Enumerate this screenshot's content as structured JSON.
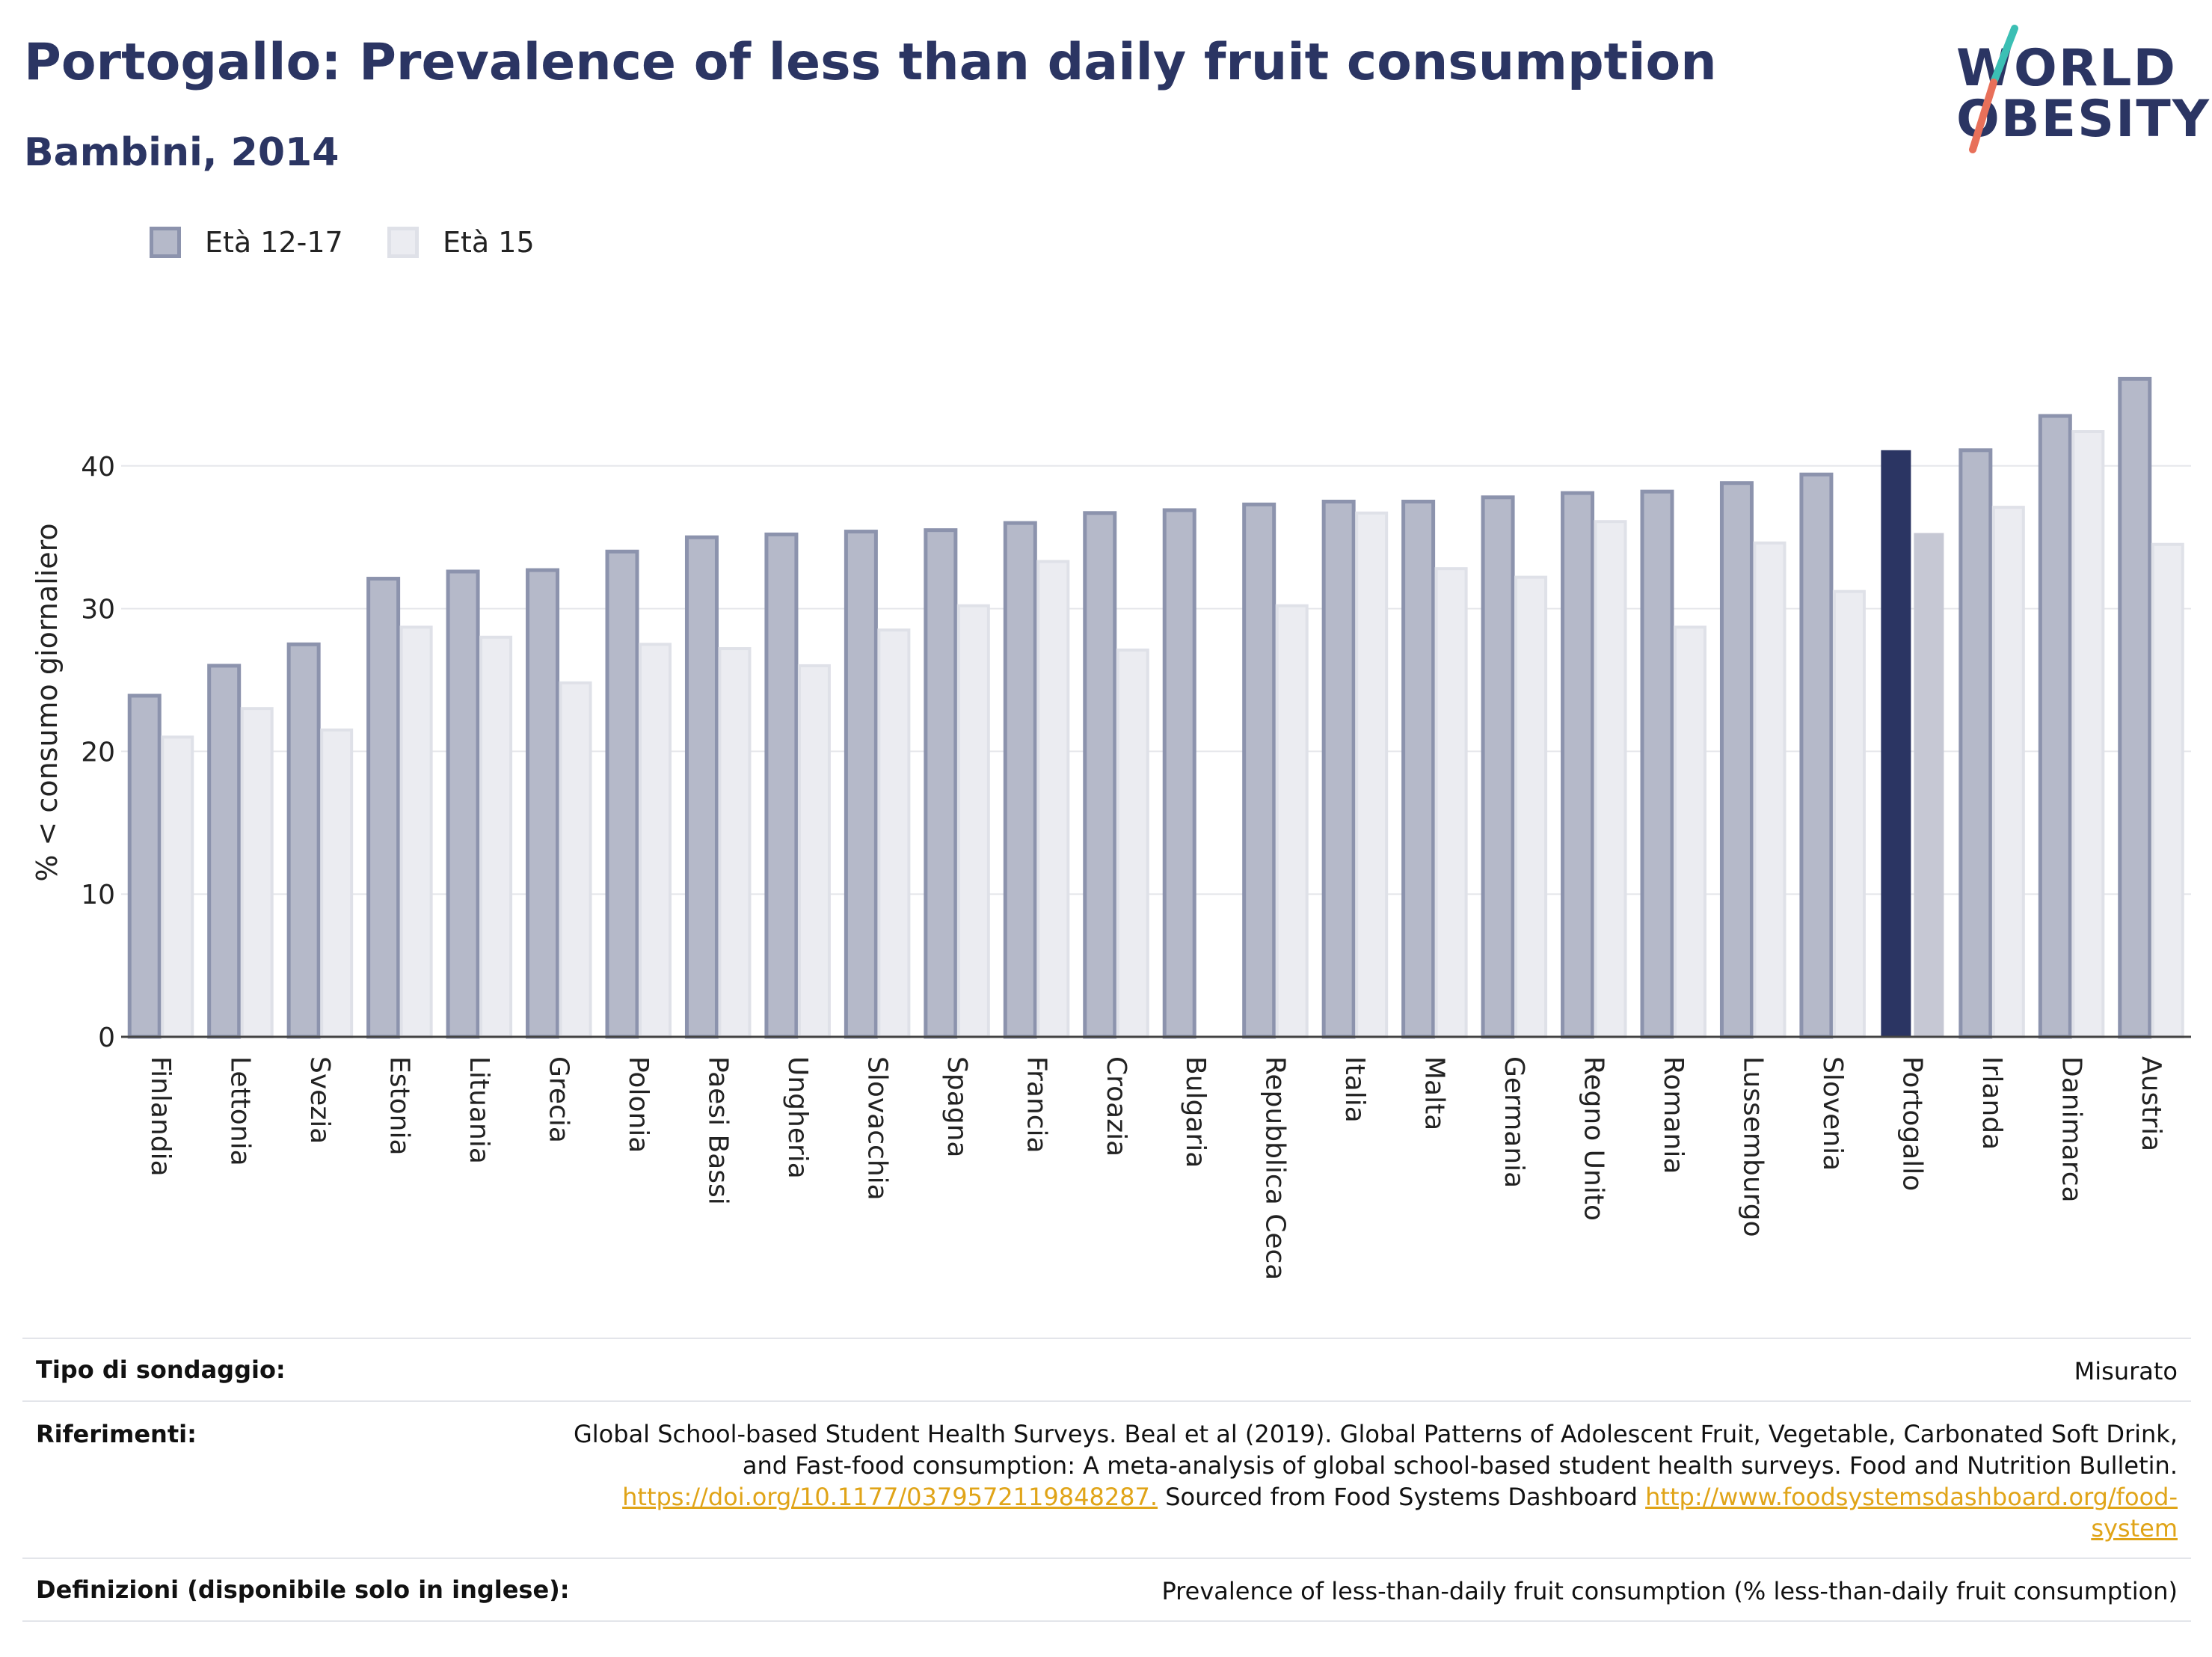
{
  "header": {
    "title": "Portogallo: Prevalence of less than daily fruit consumption",
    "subtitle": "Bambini, 2014"
  },
  "logo": {
    "line1": "WORLD",
    "line2": "OBESITY",
    "colors": {
      "text": "#2b3563",
      "slash_top": "#3bbfb4",
      "slash_bottom": "#e8705a"
    }
  },
  "legend": [
    {
      "label": "Età 12-17",
      "color": "#b5b9c9",
      "stroke": "#8c93ad"
    },
    {
      "label": "Età 15",
      "color": "#ebecf1",
      "stroke": "#dfe1e8"
    }
  ],
  "chart_data": {
    "type": "bar",
    "ylabel": "% < consumo giornaliero",
    "ylim": [
      0,
      50
    ],
    "yticks": [
      0,
      10,
      20,
      30,
      40
    ],
    "grid": true,
    "legend_position": "top-left",
    "highlight_category": "Portogallo",
    "highlight_colors": {
      "series1": "#2b3563",
      "series2": "#c6c8d4"
    },
    "categories": [
      "Finlandia",
      "Lettonia",
      "Svezia",
      "Estonia",
      "Lituania",
      "Grecia",
      "Polonia",
      "Paesi Bassi",
      "Ungheria",
      "Slovacchia",
      "Spagna",
      "Francia",
      "Croazia",
      "Bulgaria",
      "Repubblica Ceca",
      "Italia",
      "Malta",
      "Germania",
      "Regno Unito",
      "Romania",
      "Lussemburgo",
      "Slovenia",
      "Portogallo",
      "Irlanda",
      "Danimarca",
      "Austria"
    ],
    "series": [
      {
        "name": "Età 12-17",
        "values": [
          23.9,
          26.0,
          27.5,
          32.1,
          32.6,
          32.7,
          34.0,
          35.0,
          35.2,
          35.4,
          35.5,
          36.0,
          36.7,
          36.9,
          37.3,
          37.5,
          37.5,
          37.8,
          38.1,
          38.2,
          38.8,
          39.4,
          41.1,
          41.1,
          43.5,
          46.1
        ]
      },
      {
        "name": "Età 15",
        "values": [
          21.0,
          23.0,
          21.5,
          28.7,
          28.0,
          24.8,
          27.5,
          27.2,
          26.0,
          28.5,
          30.2,
          33.3,
          27.1,
          null,
          30.2,
          36.7,
          32.8,
          32.2,
          36.1,
          28.7,
          34.6,
          31.2,
          35.3,
          37.1,
          42.4,
          34.5
        ]
      }
    ]
  },
  "meta": {
    "survey_label": "Tipo di sondaggio:",
    "survey_value": "Misurato",
    "refs_label": "Riferimenti:",
    "refs_line1": "Global School-based Student Health Surveys. Beal et al (2019). Global Patterns of Adolescent Fruit, Vegetable, Carbonated Soft Drink,",
    "refs_line2": "and Fast-food consumption: A meta-analysis of global school-based student health surveys. Food and Nutrition Bulletin.",
    "refs_link1": "https://doi.org/10.1177/0379572119848287.",
    "refs_mid": " Sourced from Food Systems Dashboard ",
    "refs_link2a": "http://www.foodsystemsdashboard.org/food-",
    "refs_link2b": "system",
    "defs_label": "Definizioni (disponibile solo in inglese):",
    "defs_value": "Prevalence of less-than-daily fruit consumption (% less-than-daily fruit consumption)"
  }
}
